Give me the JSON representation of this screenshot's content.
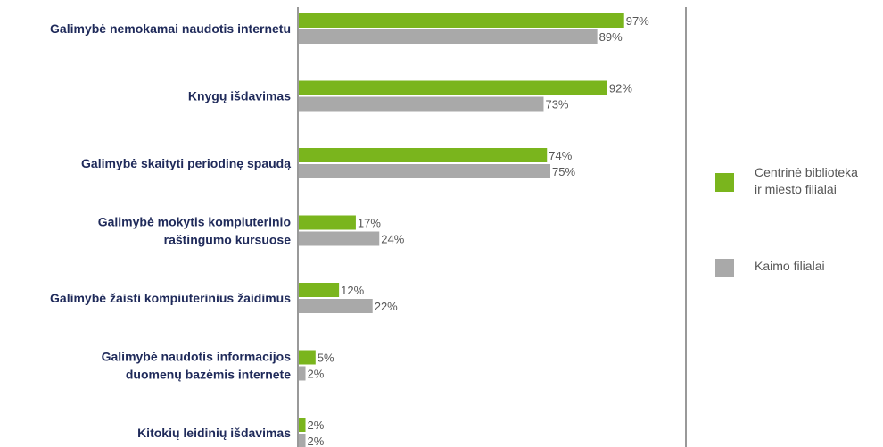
{
  "chart_data": {
    "type": "bar",
    "orientation": "horizontal",
    "categories": [
      [
        "Galimybė nemokamai naudotis internetu"
      ],
      [
        "Knygų išdavimas"
      ],
      [
        "Galimybė skaityti periodinę spaudą"
      ],
      [
        "Galimybė mokytis kompiuterinio",
        "raštingumo kursuose"
      ],
      [
        "Galimybė žaisti kompiuterinius žaidimus"
      ],
      [
        "Galimybė naudotis informacijos",
        "duomenų bazėmis internete"
      ],
      [
        "Kitokių leidinių išdavimas"
      ]
    ],
    "series": [
      {
        "name": "Centrinė biblioteka ir miesto filialai",
        "legend_lines": [
          "Centrinė biblioteka",
          "ir miesto filialai"
        ],
        "color": "#7ab51d",
        "values": [
          97,
          92,
          74,
          17,
          12,
          5,
          2
        ]
      },
      {
        "name": "Kaimo filialai",
        "legend_lines": [
          "Kaimo filialai"
        ],
        "color": "#a9a9a9",
        "values": [
          89,
          73,
          75,
          24,
          22,
          2,
          2
        ]
      }
    ],
    "value_suffix": "%",
    "xlim": [
      0,
      100
    ],
    "grid": false,
    "legend_position": "right"
  }
}
